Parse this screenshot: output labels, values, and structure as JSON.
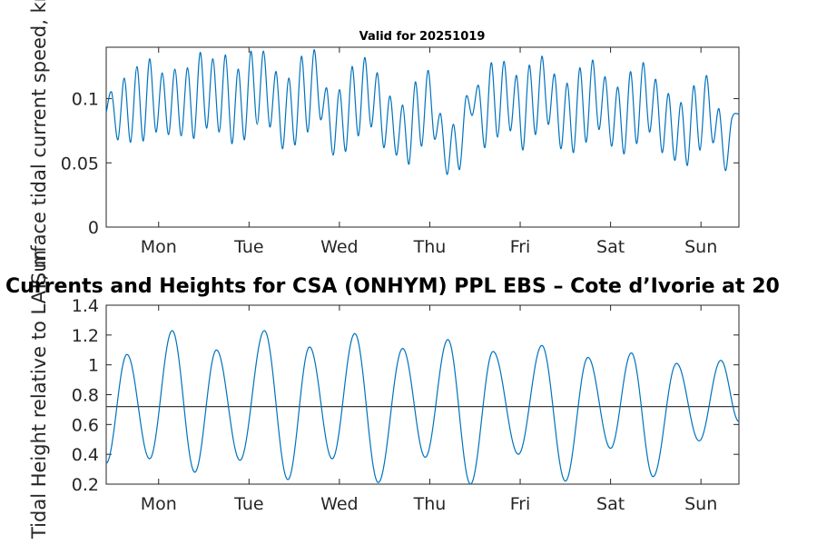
{
  "figure_title": "Currents and Heights for CSA (ONHYM) PPL EBS  – Cote d’Ivorie at 20",
  "colors": {
    "series": "#0072BD",
    "reference": "#404040",
    "axis": "#262626"
  },
  "chart_data": [
    {
      "id": "speed",
      "type": "line",
      "title": "Valid for 20251019",
      "ylabel": "Surface tidal current speed, kn",
      "xlabel": "",
      "xlim": [
        -0.58,
        6.42
      ],
      "ylim": [
        0,
        0.14
      ],
      "yticks": [
        0,
        0.05,
        0.1
      ],
      "ytick_labels": [
        "0",
        "0.05",
        "0.1"
      ],
      "xticks": [
        0,
        1,
        2,
        3,
        4,
        5,
        6
      ],
      "xtick_labels": [
        "Mon",
        "Tue",
        "Wed",
        "Thu",
        "Fri",
        "Sat",
        "Sun"
      ],
      "series": [
        {
          "name": "Surface tidal current speed",
          "x": [
            -0.58,
            -0.52,
            -0.45,
            -0.38,
            -0.31,
            -0.24,
            -0.17,
            -0.1,
            -0.03,
            0.04,
            0.11,
            0.18,
            0.25,
            0.32,
            0.39,
            0.46,
            0.53,
            0.6,
            0.67,
            0.74,
            0.81,
            0.88,
            0.95,
            1.02,
            1.09,
            1.16,
            1.23,
            1.3,
            1.37,
            1.44,
            1.51,
            1.58,
            1.65,
            1.72,
            1.79,
            1.86,
            1.93,
            2.0,
            2.07,
            2.14,
            2.21,
            2.28,
            2.35,
            2.42,
            2.49,
            2.56,
            2.63,
            2.7,
            2.77,
            2.84,
            2.91,
            2.98,
            3.05,
            3.12,
            3.19,
            3.26,
            3.33,
            3.4,
            3.47,
            3.54,
            3.61,
            3.68,
            3.75,
            3.82,
            3.89,
            3.96,
            4.03,
            4.1,
            4.17,
            4.24,
            4.31,
            4.38,
            4.45,
            4.52,
            4.59,
            4.66,
            4.73,
            4.8,
            4.87,
            4.94,
            5.01,
            5.08,
            5.15,
            5.22,
            5.29,
            5.36,
            5.43,
            5.5,
            5.57,
            5.64,
            5.71,
            5.78,
            5.85,
            5.92,
            5.99,
            6.06,
            6.13,
            6.2,
            6.27,
            6.34,
            6.42
          ],
          "y": [
            0.089,
            0.105,
            0.068,
            0.116,
            0.066,
            0.125,
            0.067,
            0.131,
            0.074,
            0.12,
            0.072,
            0.123,
            0.071,
            0.124,
            0.069,
            0.136,
            0.077,
            0.131,
            0.074,
            0.134,
            0.065,
            0.123,
            0.068,
            0.137,
            0.08,
            0.137,
            0.078,
            0.121,
            0.061,
            0.116,
            0.064,
            0.133,
            0.074,
            0.138,
            0.084,
            0.108,
            0.056,
            0.107,
            0.059,
            0.125,
            0.071,
            0.132,
            0.078,
            0.12,
            0.062,
            0.102,
            0.056,
            0.095,
            0.049,
            0.113,
            0.063,
            0.122,
            0.069,
            0.088,
            0.041,
            0.08,
            0.045,
            0.101,
            0.087,
            0.11,
            0.062,
            0.128,
            0.07,
            0.129,
            0.075,
            0.118,
            0.06,
            0.126,
            0.072,
            0.133,
            0.08,
            0.119,
            0.061,
            0.112,
            0.058,
            0.124,
            0.066,
            0.13,
            0.076,
            0.117,
            0.063,
            0.109,
            0.057,
            0.121,
            0.065,
            0.128,
            0.074,
            0.115,
            0.058,
            0.104,
            0.052,
            0.097,
            0.048,
            0.11,
            0.06,
            0.118,
            0.066,
            0.092,
            0.044,
            0.084,
            0.088
          ]
        }
      ]
    },
    {
      "id": "height",
      "type": "line",
      "title": "Currents and Heights for CSA (ONHYM) PPL EBS  – Cote d’Ivorie at 20",
      "ylabel": "Tidal Height relative to LAT, m",
      "xlabel": "",
      "xlim": [
        -0.58,
        6.42
      ],
      "ylim": [
        0.2,
        1.4
      ],
      "yticks": [
        0.2,
        0.4,
        0.6,
        0.8,
        1.0,
        1.2,
        1.4
      ],
      "ytick_labels": [
        "0.2",
        "0.4",
        "0.6",
        "0.8",
        "1",
        "1.2",
        "1.4"
      ],
      "xticks": [
        0,
        1,
        2,
        3,
        4,
        5,
        6
      ],
      "xtick_labels": [
        "Mon",
        "Tue",
        "Wed",
        "Thu",
        "Fri",
        "Sat",
        "Sun"
      ],
      "reference_line": {
        "y": 0.72
      },
      "series": [
        {
          "name": "Tidal height",
          "extrema_x": [
            -0.58,
            -0.35,
            -0.1,
            0.15,
            0.4,
            0.64,
            0.9,
            1.17,
            1.43,
            1.67,
            1.92,
            2.17,
            2.43,
            2.7,
            2.95,
            3.2,
            3.45,
            3.7,
            3.98,
            4.24,
            4.5,
            4.75,
            5.0,
            5.23,
            5.47,
            5.73,
            5.98,
            6.22,
            6.42
          ],
          "extrema_y": [
            0.34,
            1.07,
            0.37,
            1.23,
            0.28,
            1.1,
            0.36,
            1.23,
            0.23,
            1.12,
            0.37,
            1.21,
            0.21,
            1.11,
            0.38,
            1.17,
            0.2,
            1.09,
            0.4,
            1.13,
            0.22,
            1.05,
            0.44,
            1.08,
            0.25,
            1.01,
            0.49,
            1.03,
            0.62
          ]
        }
      ]
    }
  ]
}
